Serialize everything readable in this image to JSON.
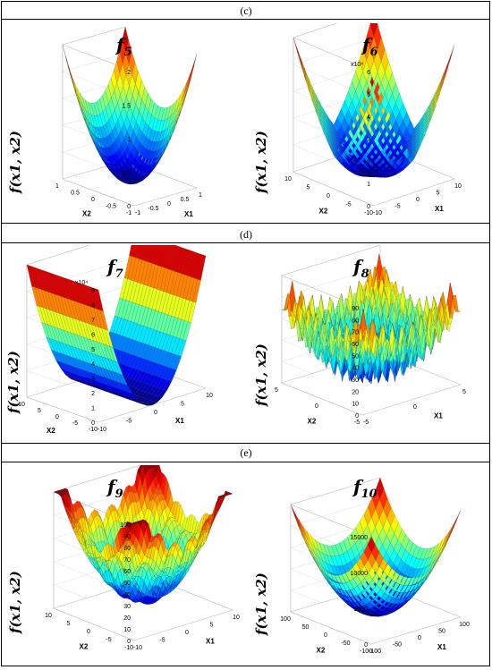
{
  "captions": {
    "c": "(c)",
    "d": "(d)",
    "e": "(e)"
  },
  "zlabel": "f(x1, x2)",
  "panels": [
    {
      "key": "f5",
      "title_base": "f",
      "title_sub": "5",
      "zticks": [
        "0",
        "0.5",
        "1",
        "1.5",
        "2"
      ],
      "zmult": "",
      "xticks": [
        "-1",
        "-0.5",
        "0",
        "0.5",
        "1"
      ],
      "yticks": [
        "-1",
        "-0.5",
        "0",
        "0.5",
        "1"
      ],
      "xlabel": "X1",
      "ylabel": "X2"
    },
    {
      "key": "f6",
      "title_base": "f",
      "title_sub": "6",
      "zticks": [
        "0",
        "1",
        "2",
        "3",
        "4",
        "5",
        "6"
      ],
      "zmult": "x10⁴",
      "xticks": [
        "-10",
        "-5",
        "0",
        "5",
        "10"
      ],
      "yticks": [
        "-10",
        "-5",
        "0",
        "5",
        "10"
      ],
      "xlabel": "X1",
      "ylabel": "X2"
    },
    {
      "key": "f7",
      "title_base": "f",
      "title_sub": "7",
      "zticks": [
        "0",
        "1",
        "2",
        "3",
        "4",
        "5",
        "6",
        "7",
        "8",
        "9"
      ],
      "zmult": "x10⁴",
      "xticks": [
        "-10",
        "-5",
        "0",
        "5",
        "10"
      ],
      "yticks": [
        "-10",
        "-5",
        "0",
        "5",
        "10"
      ],
      "xlabel": "X1",
      "ylabel": "X2"
    },
    {
      "key": "f8",
      "title_base": "f",
      "title_sub": "8",
      "zticks": [
        "0",
        "10",
        "20",
        "30",
        "40",
        "50",
        "60",
        "70",
        "80",
        "90"
      ],
      "zmult": "",
      "xticks": [
        "-5",
        "0",
        "5"
      ],
      "yticks": [
        "-5",
        "0",
        "5"
      ],
      "xlabel": "X1",
      "ylabel": "X2"
    },
    {
      "key": "f9",
      "title_base": "f",
      "title_sub": "9",
      "zticks": [
        "0",
        "10",
        "20",
        "30",
        "40",
        "50",
        "60",
        "70",
        "80",
        "90",
        "100"
      ],
      "zmult": "",
      "xticks": [
        "-10",
        "-5",
        "0",
        "5",
        "10"
      ],
      "yticks": [
        "-10",
        "-5",
        "0",
        "5",
        "10"
      ],
      "xlabel": "X1",
      "ylabel": "X2"
    },
    {
      "key": "f10",
      "title_base": "f",
      "title_sub": "10",
      "zticks": [
        "0",
        "5000",
        "10000",
        "15000"
      ],
      "zmult": "",
      "xticks": [
        "-100",
        "-50",
        "0",
        "50",
        "100"
      ],
      "yticks": [
        "-100",
        "-50",
        "0",
        "50",
        "100"
      ],
      "xlabel": "X1",
      "ylabel": "X2"
    }
  ]
}
